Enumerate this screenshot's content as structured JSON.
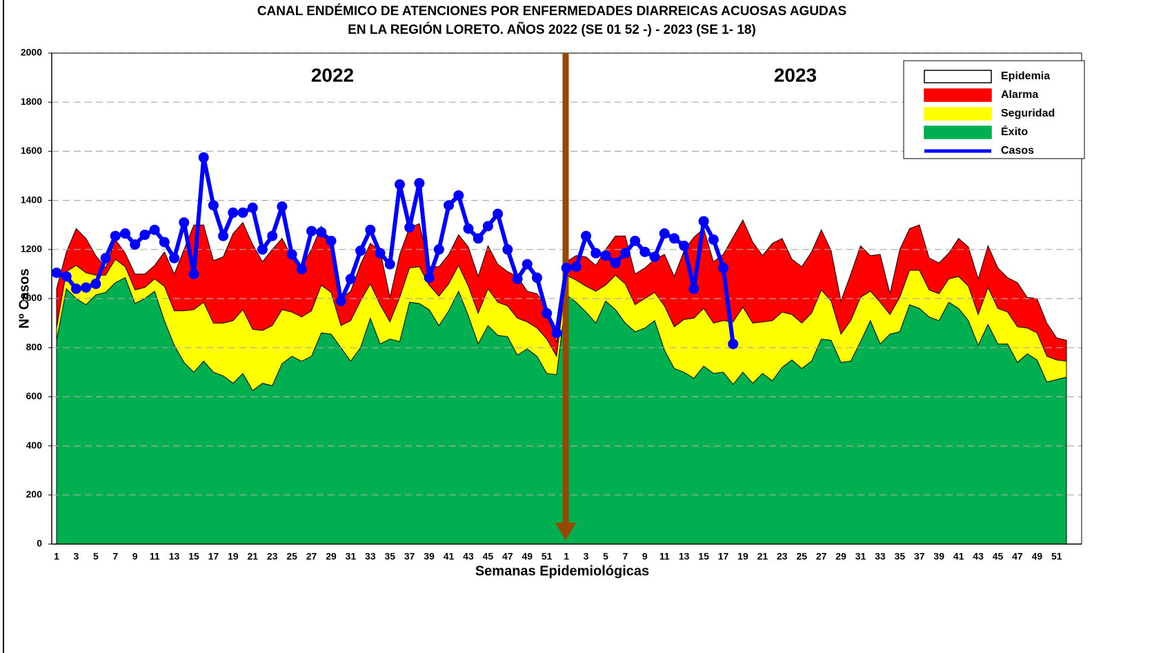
{
  "chart_data": {
    "type": "area",
    "title": [
      "CANAL ENDÉMICO DE ATENCIONES POR ENFERMEDADES DIARREICAS ACUOSAS AGUDAS",
      "EN LA REGIÓN LORETO.  AÑOS 2022 (SE 01 52 -) - 2023 (SE 1- 18)"
    ],
    "y_label": "Nº Casos",
    "x_label": "Semanas Epidemiológicas",
    "annotations": [
      "2022",
      "2023"
    ],
    "ylim": [
      0,
      2000
    ],
    "yticks": [
      0,
      200,
      400,
      600,
      800,
      1000,
      1200,
      1400,
      1600,
      1800,
      2000
    ],
    "grid": true,
    "legend": "upper right",
    "categories": [
      "1",
      null,
      "3",
      null,
      "5",
      null,
      "7",
      null,
      "9",
      null,
      "11",
      null,
      "13",
      null,
      "15",
      null,
      "17",
      null,
      "19",
      null,
      "21",
      null,
      "23",
      null,
      "25",
      null,
      "27",
      null,
      "29",
      null,
      "31",
      null,
      "33",
      null,
      "35",
      null,
      "37",
      null,
      "39",
      null,
      "41",
      null,
      "43",
      null,
      "45",
      null,
      "47",
      null,
      "49",
      null,
      "51",
      null,
      "1",
      null,
      "3",
      null,
      "5",
      null,
      "7",
      null,
      "9",
      null,
      "11",
      null,
      "13",
      null,
      "15",
      null,
      "17",
      null,
      "19",
      null,
      "21",
      null,
      "23",
      null,
      "25",
      null,
      "27",
      null,
      "29",
      null,
      "31",
      null,
      "33",
      null,
      "35",
      null,
      "37",
      null,
      "39",
      null,
      "41",
      null,
      "43",
      null,
      "45",
      null,
      "47",
      null,
      "49",
      null,
      "51",
      null
    ],
    "series": [
      {
        "name": "Epidemia",
        "color": "#ffffff"
      },
      {
        "name": "Alarma",
        "color": "#ff0000",
        "type": "area",
        "values": [
          1040,
          1190,
          1285,
          1245,
          1175,
          1125,
          1240,
          1185,
          1100,
          1100,
          1135,
          1190,
          1100,
          1200,
          1300,
          1300,
          1155,
          1170,
          1265,
          1310,
          1220,
          1150,
          1200,
          1245,
          1170,
          1130,
          1200,
          1295,
          1220,
          1000,
          1030,
          1140,
          1225,
          1195,
          1005,
          1180,
          1290,
          1305,
          1130,
          1130,
          1180,
          1260,
          1210,
          1090,
          1215,
          1140,
          1110,
          1090,
          1030,
          1020,
          960,
          820,
          1150,
          1175,
          1170,
          1135,
          1200,
          1255,
          1255,
          1100,
          1125,
          1160,
          1180,
          1090,
          1195,
          1250,
          1285,
          1150,
          1180,
          1250,
          1320,
          1230,
          1175,
          1225,
          1245,
          1160,
          1130,
          1190,
          1280,
          1195,
          990,
          1100,
          1215,
          1175,
          1180,
          1020,
          1200,
          1285,
          1300,
          1165,
          1145,
          1185,
          1245,
          1210,
          1080,
          1215,
          1125,
          1085,
          1065,
          1005,
          1000,
          900,
          840,
          830
        ]
      },
      {
        "name": "Seguridad",
        "color": "#ffff00",
        "type": "area",
        "values": [
          880,
          1110,
          1135,
          1105,
          1095,
          1095,
          1160,
          1130,
          1035,
          1045,
          1080,
          1050,
          950,
          950,
          955,
          985,
          900,
          900,
          910,
          955,
          875,
          870,
          890,
          955,
          945,
          925,
          950,
          1055,
          1025,
          890,
          910,
          990,
          1060,
          975,
          905,
          1005,
          1125,
          1130,
          1055,
          1010,
          1060,
          1135,
          1050,
          940,
          1040,
          985,
          970,
          920,
          905,
          880,
          835,
          765,
          1095,
          1075,
          1050,
          1030,
          1055,
          1095,
          1060,
          975,
          1000,
          1025,
          970,
          885,
          915,
          920,
          960,
          900,
          910,
          905,
          965,
          900,
          905,
          910,
          945,
          935,
          900,
          940,
          1035,
          990,
          855,
          910,
          1005,
          1030,
          985,
          935,
          1005,
          1115,
          1115,
          1035,
          1020,
          1080,
          1090,
          1050,
          935,
          1045,
          960,
          945,
          885,
          880,
          860,
          765,
          750,
          745
        ]
      },
      {
        "name": "Éxito",
        "color": "#00b050",
        "type": "area",
        "values": [
          830,
          1040,
          1000,
          975,
          1015,
          1025,
          1065,
          1085,
          980,
          1000,
          1030,
          910,
          810,
          740,
          700,
          745,
          700,
          685,
          655,
          695,
          625,
          655,
          645,
          735,
          765,
          745,
          765,
          860,
          855,
          800,
          745,
          800,
          920,
          815,
          835,
          825,
          985,
          980,
          955,
          890,
          950,
          1030,
          930,
          815,
          890,
          850,
          845,
          770,
          795,
          765,
          695,
          690,
          1015,
          985,
          945,
          900,
          990,
          955,
          900,
          865,
          880,
          910,
          790,
          715,
          700,
          675,
          725,
          695,
          700,
          650,
          700,
          655,
          695,
          665,
          720,
          750,
          715,
          745,
          835,
          830,
          740,
          745,
          825,
          910,
          815,
          855,
          865,
          975,
          960,
          925,
          910,
          985,
          960,
          910,
          810,
          895,
          815,
          815,
          740,
          775,
          750,
          660,
          670,
          680
        ]
      },
      {
        "name": "Casos",
        "color": "#0000ff",
        "type": "line",
        "values": [
          1105,
          1090,
          1040,
          1045,
          1060,
          1165,
          1255,
          1265,
          1220,
          1260,
          1280,
          1230,
          1165,
          1310,
          1100,
          1575,
          1380,
          1255,
          1350,
          1350,
          1370,
          1200,
          1255,
          1375,
          1180,
          1120,
          1275,
          1270,
          1235,
          990,
          1080,
          1195,
          1280,
          1185,
          1140,
          1465,
          1290,
          1470,
          1085,
          1200,
          1380,
          1420,
          1285,
          1245,
          1295,
          1345,
          1200,
          1080,
          1140,
          1085,
          940,
          860,
          1125,
          1130,
          1255,
          1185,
          1175,
          1145,
          1185,
          1235,
          1190,
          1170,
          1265,
          1245,
          1215,
          1040,
          1315,
          1240,
          1125,
          815,
          null,
          null,
          null,
          null,
          null,
          null,
          null,
          null,
          null,
          null,
          null,
          null,
          null,
          null,
          null,
          null,
          null,
          null,
          null,
          null,
          null,
          null,
          null,
          null,
          null,
          null,
          null,
          null,
          null,
          null,
          null,
          null,
          null,
          null
        ]
      }
    ]
  }
}
